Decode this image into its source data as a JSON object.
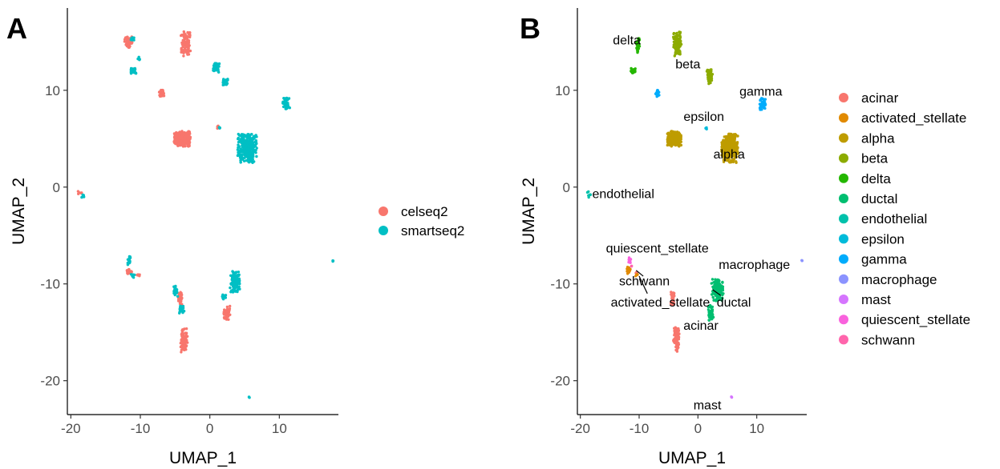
{
  "chart_data": [
    {
      "type": "scatter",
      "panel": "A",
      "xlabel": "UMAP_1",
      "ylabel": "UMAP_2",
      "xlim": [
        -20.5,
        18.5
      ],
      "ylim": [
        -23.5,
        18.5
      ],
      "xticks": [
        -20,
        -10,
        0,
        10
      ],
      "yticks": [
        -20,
        -10,
        0,
        10
      ],
      "legend_position": "right",
      "series": [
        {
          "name": "celseq2",
          "color": "#F8766D",
          "clusters": [
            [
              -11.7,
              15.0,
              0.6,
              0.6,
              60
            ],
            [
              -3.5,
              14.8,
              0.7,
              1.3,
              110
            ],
            [
              -6.9,
              9.7,
              0.4,
              0.35,
              25
            ],
            [
              -4.0,
              5.0,
              1.2,
              0.8,
              260
            ],
            [
              1.1,
              6.2,
              0.15,
              0.15,
              5
            ],
            [
              -18.7,
              -0.6,
              0.3,
              0.2,
              6
            ],
            [
              -11.6,
              -8.8,
              0.4,
              0.3,
              25
            ],
            [
              -4.3,
              -11.5,
              0.3,
              0.7,
              35
            ],
            [
              2.4,
              -13.0,
              0.5,
              0.8,
              45
            ],
            [
              -3.7,
              -15.8,
              0.5,
              1.3,
              80
            ],
            [
              -10.3,
              -9.1,
              0.2,
              0.15,
              5
            ]
          ]
        },
        {
          "name": "smartseq2",
          "color": "#00BFC4",
          "clusters": [
            [
              -11.2,
              15.3,
              0.3,
              0.2,
              8
            ],
            [
              -10.2,
              13.3,
              0.2,
              0.2,
              6
            ],
            [
              -11.0,
              12.0,
              0.4,
              0.3,
              30
            ],
            [
              0.9,
              12.3,
              0.5,
              0.6,
              40
            ],
            [
              2.2,
              10.9,
              0.4,
              0.4,
              25
            ],
            [
              11.0,
              8.6,
              0.5,
              0.6,
              45
            ],
            [
              5.4,
              4.0,
              1.4,
              1.5,
              300
            ],
            [
              -18.2,
              -1.1,
              0.25,
              0.3,
              6
            ],
            [
              -11.6,
              -7.6,
              0.25,
              0.5,
              18
            ],
            [
              -11.1,
              -9.2,
              0.3,
              0.2,
              8
            ],
            [
              -4.9,
              -10.7,
              0.3,
              0.6,
              25
            ],
            [
              -4.1,
              -12.6,
              0.4,
              0.5,
              20
            ],
            [
              3.6,
              -9.8,
              0.7,
              1.1,
              120
            ],
            [
              2.0,
              -11.3,
              0.3,
              0.3,
              10
            ],
            [
              17.7,
              -7.6,
              0.1,
              0.1,
              4
            ],
            [
              5.7,
              -21.7,
              0.08,
              0.08,
              3
            ],
            [
              1.4,
              6.1,
              0.12,
              0.1,
              4
            ]
          ]
        }
      ]
    },
    {
      "type": "scatter",
      "panel": "B",
      "xlabel": "UMAP_1",
      "ylabel": "UMAP_2",
      "xlim": [
        -20.5,
        18.5
      ],
      "ylim": [
        -23.5,
        18.5
      ],
      "xticks": [
        -20,
        -10,
        0,
        10
      ],
      "yticks": [
        -20,
        -10,
        0,
        10
      ],
      "legend_position": "right",
      "series": [
        {
          "name": "acinar",
          "color": "#F8766D",
          "clusters": [
            [
              -4.3,
              -11.5,
              0.3,
              0.7,
              35
            ],
            [
              -3.7,
              -15.8,
              0.5,
              1.3,
              80
            ],
            [
              -10.5,
              -8.9,
              0.2,
              0.2,
              5
            ]
          ]
        },
        {
          "name": "activated_stellate",
          "color": "#E18A00",
          "clusters": [
            [
              -11.8,
              -8.6,
              0.3,
              0.35,
              20
            ],
            [
              -10.4,
              -9.1,
              0.2,
              0.15,
              5
            ]
          ]
        },
        {
          "name": "alpha",
          "color": "#BE9C00",
          "clusters": [
            [
              -4.0,
              5.0,
              1.2,
              0.8,
              260
            ],
            [
              5.4,
              4.0,
              1.4,
              1.5,
              300
            ]
          ]
        },
        {
          "name": "beta",
          "color": "#8CAB00",
          "clusters": [
            [
              -3.5,
              14.8,
              0.7,
              1.3,
              110
            ],
            [
              2.0,
              11.4,
              0.5,
              0.8,
              50
            ]
          ]
        },
        {
          "name": "delta",
          "color": "#24B700",
          "clusters": [
            [
              -10.2,
              14.6,
              0.3,
              0.8,
              25
            ],
            [
              -11.0,
              12.0,
              0.4,
              0.3,
              25
            ]
          ]
        },
        {
          "name": "ductal",
          "color": "#00BE70",
          "clusters": [
            [
              3.3,
              -10.6,
              1.0,
              1.2,
              130
            ],
            [
              2.2,
              -13.0,
              0.5,
              0.8,
              45
            ]
          ]
        },
        {
          "name": "endothelial",
          "color": "#00C1AB",
          "clusters": [
            [
              -18.5,
              -0.8,
              0.3,
              0.35,
              8
            ]
          ]
        },
        {
          "name": "epsilon",
          "color": "#00BBDA",
          "clusters": [
            [
              1.4,
              6.1,
              0.12,
              0.12,
              5
            ]
          ]
        },
        {
          "name": "gamma",
          "color": "#00ACFC",
          "clusters": [
            [
              11.0,
              8.6,
              0.5,
              0.6,
              45
            ],
            [
              -6.9,
              9.7,
              0.3,
              0.35,
              20
            ]
          ]
        },
        {
          "name": "macrophage",
          "color": "#8B93FF",
          "clusters": [
            [
              17.7,
              -7.6,
              0.1,
              0.1,
              4
            ]
          ]
        },
        {
          "name": "mast",
          "color": "#D575FE",
          "clusters": [
            [
              5.7,
              -21.7,
              0.08,
              0.08,
              3
            ]
          ]
        },
        {
          "name": "quiescent_stellate",
          "color": "#F962DD",
          "clusters": [
            [
              -11.6,
              -7.5,
              0.2,
              0.4,
              12
            ]
          ]
        },
        {
          "name": "schwann",
          "color": "#FF65AC",
          "clusters": [
            [
              -11.3,
              -8.2,
              0.1,
              0.1,
              3
            ]
          ]
        }
      ],
      "annotations": [
        {
          "text": "delta",
          "x": -12.1,
          "y": 15.1
        },
        {
          "text": "beta",
          "x": -1.7,
          "y": 12.6
        },
        {
          "text": "gamma",
          "x": 10.7,
          "y": 9.8
        },
        {
          "text": "epsilon",
          "x": 1.0,
          "y": 7.2
        },
        {
          "text": "alpha",
          "x": 5.3,
          "y": 3.3
        },
        {
          "text": "endothelial",
          "x": -12.7,
          "y": -0.8
        },
        {
          "text": "quiescent_stellate",
          "x": -6.9,
          "y": -6.4
        },
        {
          "text": "macrophage",
          "x": 9.6,
          "y": -8.1
        },
        {
          "text": "schwann",
          "x": -9.1,
          "y": -9.8
        },
        {
          "text": "activated_stellate",
          "x": -6.4,
          "y": -12.0
        },
        {
          "text": "ductal",
          "x": 6.1,
          "y": -12.0
        },
        {
          "text": "acinar",
          "x": 0.5,
          "y": -14.4
        },
        {
          "text": "mast",
          "x": 1.6,
          "y": -22.6
        }
      ],
      "annotation_segments": [
        [
          -9.3,
          -9.2,
          -10.5,
          -8.6
        ],
        [
          -8.6,
          -11.0,
          -10.0,
          -9.2
        ],
        [
          3.9,
          -11.2,
          2.5,
          -10.6
        ]
      ]
    }
  ],
  "panels": {
    "a": "A",
    "b": "B"
  }
}
